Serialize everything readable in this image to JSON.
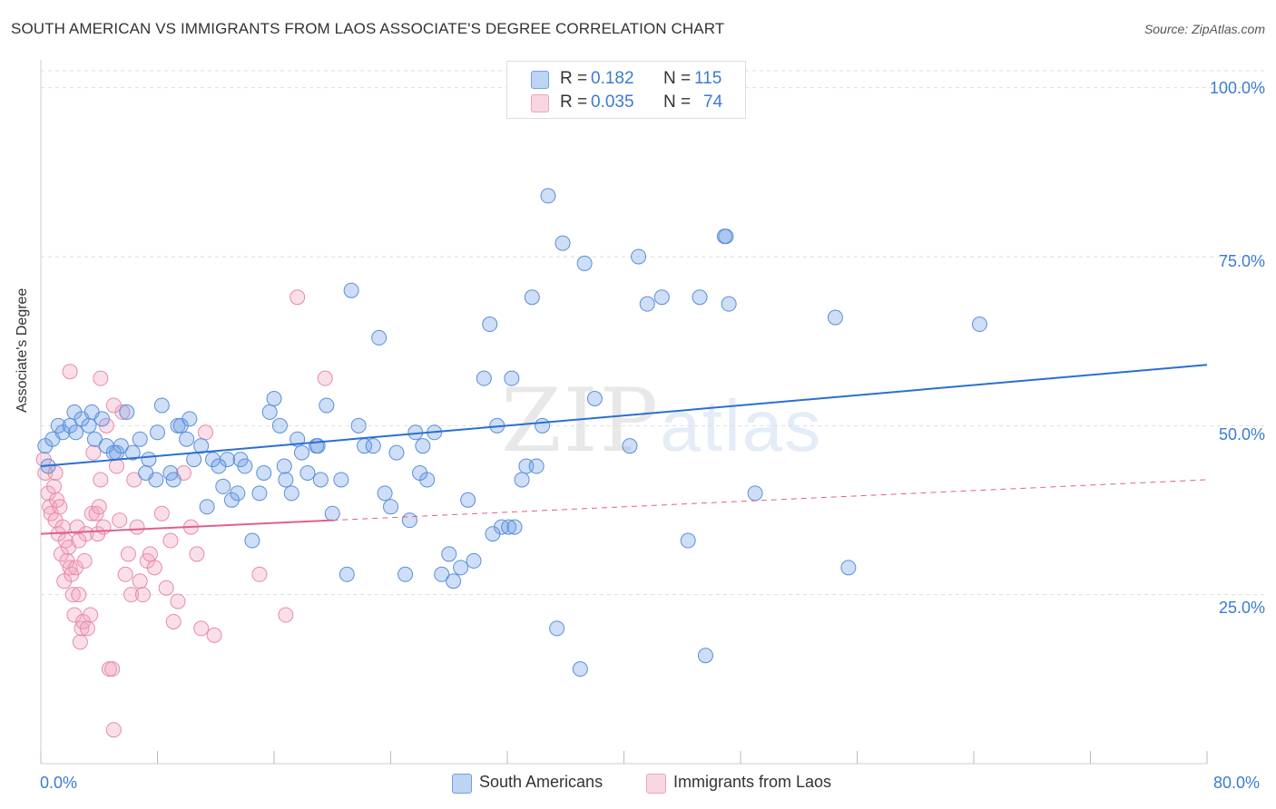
{
  "title": "SOUTH AMERICAN VS IMMIGRANTS FROM LAOS ASSOCIATE'S DEGREE CORRELATION CHART",
  "source": "Source: ZipAtlas.com",
  "watermark": {
    "zip": "ZIP",
    "atlas": "atlas"
  },
  "legend": {
    "rows": [
      {
        "r_label": "R =",
        "r_value": "0.182",
        "n_label": "N =",
        "n_value": "115"
      },
      {
        "r_label": "R =",
        "r_value": "0.035",
        "n_label": "N =",
        "n_value": "74"
      }
    ]
  },
  "bottom_legend": [
    "South Americans",
    "Immigrants from Laos"
  ],
  "colors": {
    "blue": "#6fa0e4",
    "blue_line": "#2a6fd1",
    "pink": "#f0a3bd",
    "pink_line": "#e0608a",
    "tick_text": "#3b7bd4"
  },
  "chart_data": {
    "type": "scatter",
    "title": "SOUTH AMERICAN VS IMMIGRANTS FROM LAOS ASSOCIATE'S DEGREE CORRELATION CHART",
    "xlabel": "",
    "ylabel": "Associate's Degree",
    "xlim": [
      0,
      80
    ],
    "ylim": [
      0,
      100
    ],
    "x_tick_labels": [
      "0.0%",
      "80.0%"
    ],
    "y_tick_labels": [
      "100.0%",
      "75.0%",
      "50.0%",
      "25.0%"
    ],
    "y_ticks": [
      100,
      75,
      50,
      25
    ],
    "grid": true,
    "legend_position": "top-center",
    "series": [
      {
        "name": "South Americans",
        "color": "#6fa0e4",
        "r": 0.182,
        "n": 115,
        "trend": {
          "x": [
            0,
            80
          ],
          "y": [
            44,
            59
          ],
          "dashed_from": null
        },
        "points": [
          [
            0.3,
            47
          ],
          [
            0.5,
            44
          ],
          [
            0.8,
            48
          ],
          [
            1.2,
            50
          ],
          [
            1.5,
            49
          ],
          [
            2.0,
            50
          ],
          [
            2.3,
            52
          ],
          [
            2.8,
            51
          ],
          [
            3.3,
            50
          ],
          [
            3.7,
            48
          ],
          [
            3.5,
            52
          ],
          [
            4.2,
            51
          ],
          [
            4.5,
            47
          ],
          [
            5.2,
            46
          ],
          [
            5.5,
            47
          ],
          [
            5.9,
            52
          ],
          [
            6.3,
            46
          ],
          [
            6.8,
            48
          ],
          [
            7.4,
            45
          ],
          [
            7.9,
            42
          ],
          [
            7.2,
            43
          ],
          [
            8.0,
            49
          ],
          [
            8.3,
            53
          ],
          [
            8.9,
            43
          ],
          [
            9.4,
            50
          ],
          [
            9.1,
            42
          ],
          [
            10.0,
            48
          ],
          [
            10.2,
            51
          ],
          [
            10.5,
            45
          ],
          [
            11.0,
            47
          ],
          [
            11.4,
            38
          ],
          [
            11.8,
            45
          ],
          [
            12.5,
            41
          ],
          [
            12.8,
            45
          ],
          [
            13.1,
            39
          ],
          [
            13.7,
            45
          ],
          [
            14.0,
            44
          ],
          [
            14.5,
            33
          ],
          [
            15.0,
            40
          ],
          [
            15.3,
            43
          ],
          [
            15.7,
            52
          ],
          [
            16.0,
            54
          ],
          [
            16.4,
            50
          ],
          [
            16.8,
            42
          ],
          [
            17.2,
            40
          ],
          [
            17.6,
            48
          ],
          [
            17.9,
            46
          ],
          [
            18.3,
            43
          ],
          [
            18.9,
            47
          ],
          [
            19.2,
            42
          ],
          [
            19.6,
            53
          ],
          [
            20.0,
            37
          ],
          [
            20.6,
            42
          ],
          [
            21.0,
            28
          ],
          [
            21.3,
            70
          ],
          [
            21.8,
            50
          ],
          [
            22.2,
            47
          ],
          [
            22.8,
            47
          ],
          [
            23.2,
            63
          ],
          [
            23.6,
            40
          ],
          [
            24.0,
            38
          ],
          [
            24.4,
            46
          ],
          [
            25.0,
            28
          ],
          [
            25.3,
            36
          ],
          [
            25.7,
            49
          ],
          [
            26.2,
            47
          ],
          [
            26.5,
            42
          ],
          [
            27.0,
            49
          ],
          [
            27.5,
            28
          ],
          [
            28.0,
            31
          ],
          [
            28.3,
            27
          ],
          [
            28.8,
            29
          ],
          [
            29.3,
            39
          ],
          [
            29.7,
            30
          ],
          [
            30.4,
            57
          ],
          [
            30.8,
            65
          ],
          [
            31.3,
            50
          ],
          [
            31.6,
            35
          ],
          [
            32.1,
            35
          ],
          [
            32.3,
            57
          ],
          [
            32.5,
            35
          ],
          [
            33.0,
            42
          ],
          [
            33.3,
            44
          ],
          [
            33.7,
            69
          ],
          [
            34.0,
            44
          ],
          [
            34.4,
            50
          ],
          [
            34.8,
            84
          ],
          [
            35.4,
            20
          ],
          [
            35.8,
            77
          ],
          [
            37.0,
            14
          ],
          [
            37.3,
            74
          ],
          [
            38.0,
            54
          ],
          [
            40.4,
            47
          ],
          [
            41.0,
            75
          ],
          [
            41.6,
            68
          ],
          [
            42.6,
            69
          ],
          [
            44.4,
            33
          ],
          [
            45.2,
            69
          ],
          [
            45.6,
            16
          ],
          [
            46.9,
            78
          ],
          [
            47.0,
            78
          ],
          [
            47.2,
            68
          ],
          [
            49.0,
            40
          ],
          [
            54.5,
            66
          ],
          [
            55.4,
            29
          ],
          [
            64.4,
            65
          ],
          [
            5.0,
            46
          ],
          [
            9.6,
            50
          ],
          [
            12.2,
            44
          ],
          [
            13.5,
            40
          ],
          [
            16.7,
            44
          ],
          [
            19.0,
            47
          ],
          [
            26.0,
            43
          ],
          [
            31.0,
            34
          ],
          [
            2.4,
            49
          ]
        ]
      },
      {
        "name": "Immigrants from Laos",
        "color": "#f0a3bd",
        "r": 0.035,
        "n": 74,
        "trend": {
          "x": [
            0,
            80
          ],
          "y": [
            34,
            42
          ],
          "solid_to": 20
        },
        "points": [
          [
            0.2,
            45
          ],
          [
            0.3,
            43
          ],
          [
            0.5,
            40
          ],
          [
            0.6,
            38
          ],
          [
            0.7,
            37
          ],
          [
            0.9,
            41
          ],
          [
            1.0,
            36
          ],
          [
            1.1,
            39
          ],
          [
            1.2,
            34
          ],
          [
            1.3,
            38
          ],
          [
            1.4,
            31
          ],
          [
            1.5,
            35
          ],
          [
            1.6,
            27
          ],
          [
            1.7,
            33
          ],
          [
            1.8,
            30
          ],
          [
            1.9,
            32
          ],
          [
            2.0,
            29
          ],
          [
            2.1,
            28
          ],
          [
            2.2,
            25
          ],
          [
            2.3,
            22
          ],
          [
            2.4,
            29
          ],
          [
            2.5,
            35
          ],
          [
            2.6,
            25
          ],
          [
            2.7,
            18
          ],
          [
            2.8,
            20
          ],
          [
            2.9,
            21
          ],
          [
            3.0,
            30
          ],
          [
            3.1,
            34
          ],
          [
            3.2,
            20
          ],
          [
            3.4,
            22
          ],
          [
            3.5,
            37
          ],
          [
            3.6,
            46
          ],
          [
            3.8,
            37
          ],
          [
            3.9,
            34
          ],
          [
            4.0,
            38
          ],
          [
            4.1,
            42
          ],
          [
            4.3,
            35
          ],
          [
            4.5,
            50
          ],
          [
            4.7,
            14
          ],
          [
            4.9,
            14
          ],
          [
            5.0,
            5
          ],
          [
            5.2,
            44
          ],
          [
            5.4,
            36
          ],
          [
            5.6,
            52
          ],
          [
            5.8,
            28
          ],
          [
            6.0,
            31
          ],
          [
            6.2,
            25
          ],
          [
            6.4,
            42
          ],
          [
            6.6,
            35
          ],
          [
            6.8,
            27
          ],
          [
            7.0,
            25
          ],
          [
            7.3,
            30
          ],
          [
            7.5,
            31
          ],
          [
            7.8,
            29
          ],
          [
            8.3,
            37
          ],
          [
            8.6,
            26
          ],
          [
            8.9,
            33
          ],
          [
            9.1,
            21
          ],
          [
            9.4,
            24
          ],
          [
            9.8,
            43
          ],
          [
            10.3,
            35
          ],
          [
            10.7,
            31
          ],
          [
            11.0,
            20
          ],
          [
            11.3,
            49
          ],
          [
            11.9,
            19
          ],
          [
            15.0,
            28
          ],
          [
            16.8,
            22
          ],
          [
            17.6,
            69
          ],
          [
            19.5,
            57
          ],
          [
            2.0,
            58
          ],
          [
            4.1,
            57
          ],
          [
            5.0,
            53
          ],
          [
            1.0,
            43
          ],
          [
            2.6,
            33
          ]
        ]
      }
    ]
  }
}
